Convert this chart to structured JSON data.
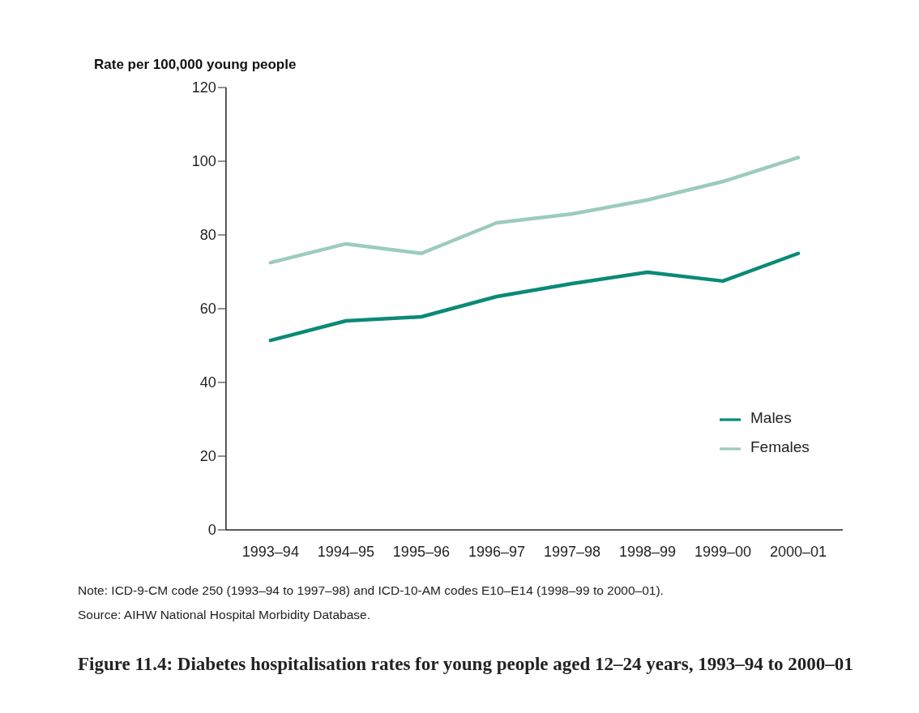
{
  "chart_data": {
    "type": "line",
    "title": "Figure 11.4: Diabetes hospitalisation rates for young people aged 12–24 years, 1993–94 to 2000–01",
    "ylabel": "Rate per 100,000 young people",
    "categories": [
      "1993–94",
      "1994–95",
      "1995–96",
      "1996–97",
      "1997–98",
      "1998–99",
      "1999–00",
      "2000–01"
    ],
    "series": [
      {
        "name": "Males",
        "color": "#0b8a78",
        "values": [
          51.4,
          56.7,
          57.8,
          63.3,
          66.8,
          69.9,
          67.5,
          75
        ]
      },
      {
        "name": "Females",
        "color": "#9ccbbf",
        "values": [
          72.5,
          77.6,
          75,
          83.3,
          85.7,
          89.5,
          94.5,
          101
        ]
      }
    ],
    "ylim": [
      0,
      120
    ],
    "yticks": [
      0,
      20,
      40,
      60,
      80,
      100,
      120
    ],
    "grid": false,
    "legend": "bottom right",
    "marker": "none",
    "line_style": "solid",
    "annotations": [
      "Note: ICD-9-CM code 250 (1993–94 to 1997–98) and ICD-10-AM codes E10–E14 (1998–99 to 2000–01).",
      "Source: AIHW National Hospital Morbidity Database."
    ]
  }
}
